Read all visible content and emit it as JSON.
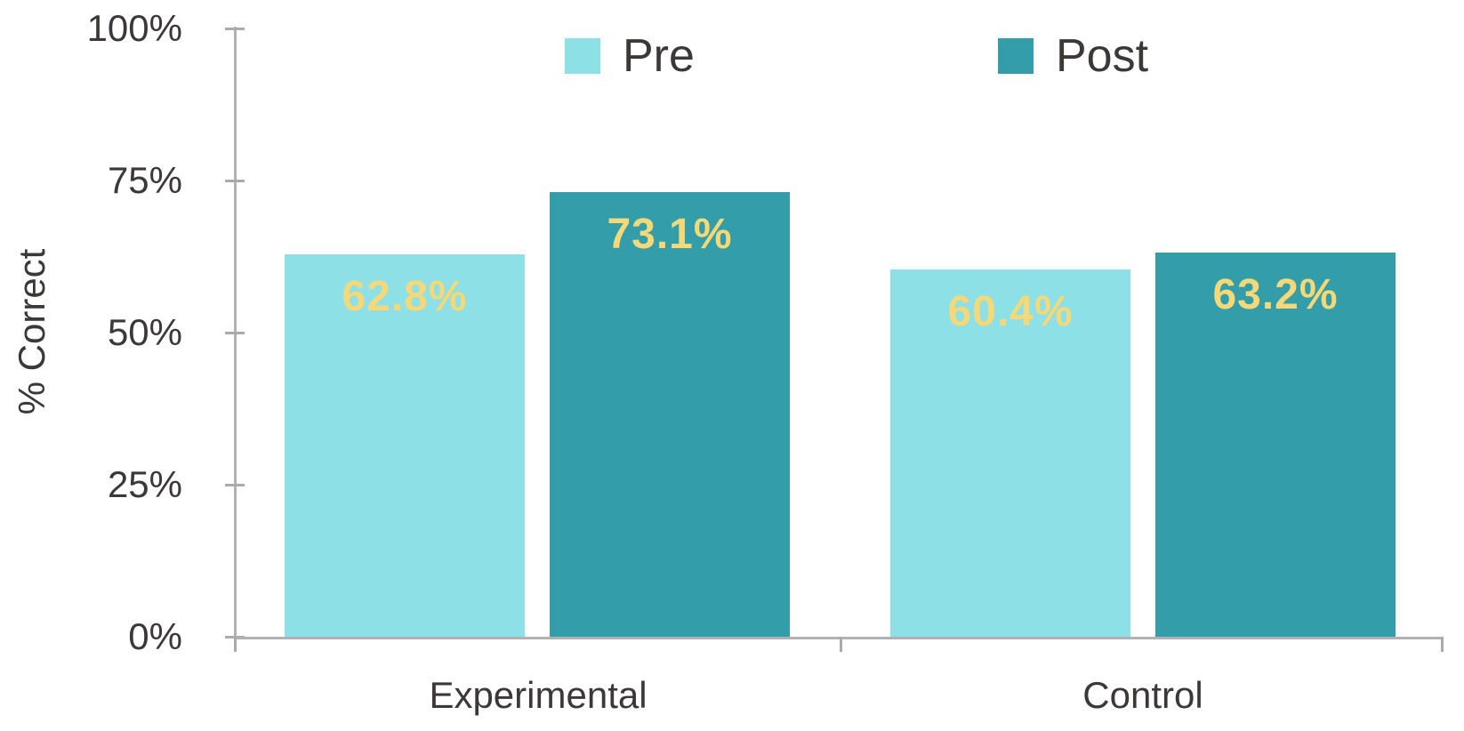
{
  "chart_data": {
    "type": "bar",
    "title": "",
    "xlabel": "",
    "ylabel": "% Correct",
    "categories": [
      "Experimental",
      "Control"
    ],
    "series": [
      {
        "name": "Pre",
        "color": "#8DE0E6",
        "values": [
          62.8,
          60.4
        ],
        "labels": [
          "62.8%",
          "60.4%"
        ]
      },
      {
        "name": "Post",
        "color": "#339EAA",
        "values": [
          73.1,
          63.2
        ],
        "labels": [
          "73.1%",
          "63.2%"
        ]
      }
    ],
    "ylim": [
      0,
      100
    ],
    "yticks": [
      0,
      25,
      50,
      75,
      100
    ],
    "ytick_labels": [
      "0%",
      "25%",
      "50%",
      "75%",
      "100%"
    ],
    "grid": false,
    "legend_position": "top",
    "value_label_color": "#F5D877",
    "axis_line_color": "#B3B2B2",
    "axis_text_color": "#3D3838"
  }
}
